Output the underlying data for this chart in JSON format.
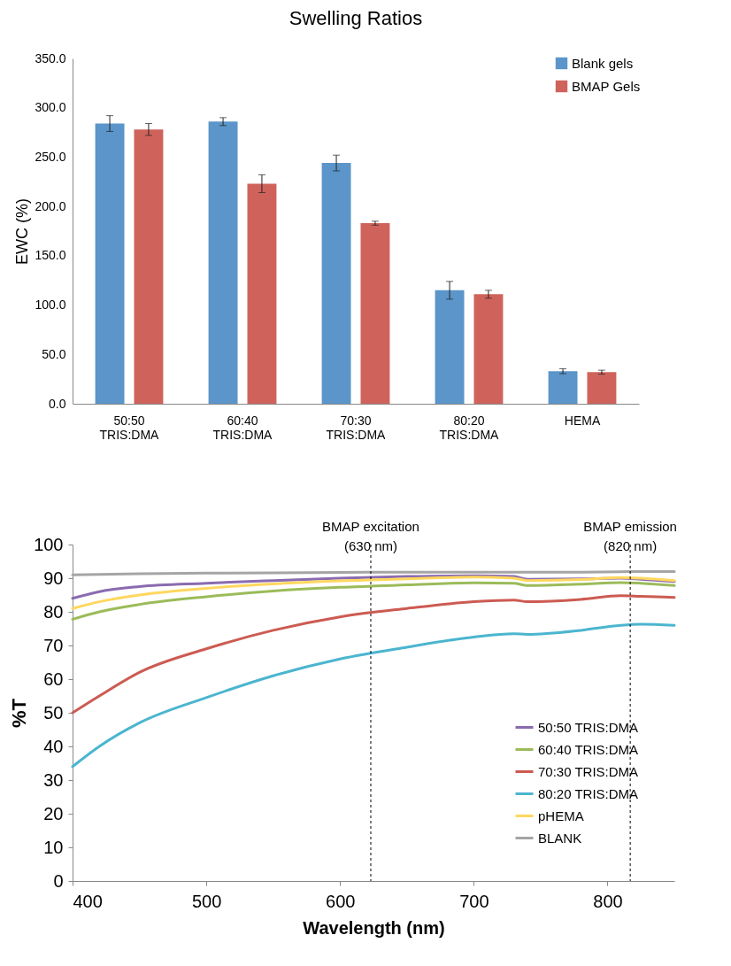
{
  "chart_data": [
    {
      "type": "bar",
      "title": "Swelling Ratios",
      "ylabel": "EWC (%)",
      "categories": [
        "50:50\nTRIS:DMA",
        "60:40\nTRIS:DMA",
        "70:30\nTRIS:DMA",
        "80:20\nTRIS:DMA",
        "HEMA"
      ],
      "series": [
        {
          "name": "Blank gels",
          "color": "#5b95c9",
          "values": [
            284,
            286,
            244,
            115,
            33
          ],
          "errors": [
            8,
            4,
            8,
            9,
            2.5
          ]
        },
        {
          "name": "BMAP Gels",
          "color": "#cf635b",
          "values": [
            278,
            223,
            183,
            111,
            32
          ],
          "errors": [
            6,
            9,
            2,
            4,
            2
          ]
        }
      ],
      "ylim": [
        0,
        350
      ],
      "yticks": [
        {
          "value": 0,
          "label": "0.0"
        },
        {
          "value": 50,
          "label": "50.0"
        },
        {
          "value": 100,
          "label": "100.0"
        },
        {
          "value": 150,
          "label": "150.0"
        },
        {
          "value": 200,
          "label": "200.0"
        },
        {
          "value": 250,
          "label": "250.0"
        },
        {
          "value": 300,
          "label": "300.0"
        },
        {
          "value": 350,
          "label": "350.0"
        }
      ],
      "grid": false,
      "legend": "top right"
    },
    {
      "type": "line",
      "xlabel": "Wavelength (nm)",
      "ylabel": "%T",
      "x": [
        400,
        420,
        450,
        500,
        550,
        600,
        650,
        700,
        730,
        740,
        780,
        810,
        825,
        850
      ],
      "series": [
        {
          "name": "50:50 TRIS:DMA",
          "color": "#8a6bb0",
          "values": [
            84,
            86,
            87.5,
            88.5,
            89.3,
            90,
            90.5,
            90.7,
            90.5,
            89.7,
            89.8,
            90,
            89.7,
            89
          ]
        },
        {
          "name": "60:40 TRIS:DMA",
          "color": "#9bbb59",
          "values": [
            77.8,
            80,
            82.2,
            84.5,
            86.2,
            87.3,
            88,
            88.6,
            88.5,
            87.8,
            88.2,
            88.7,
            88.5,
            87.8
          ]
        },
        {
          "name": "70:30 TRIS:DMA",
          "color": "#cc5b52",
          "values": [
            50,
            55,
            62,
            69,
            74.5,
            78.5,
            81,
            83,
            83.5,
            83,
            83.7,
            84.8,
            84.6,
            84.3
          ]
        },
        {
          "name": "80:20 TRIS:DMA",
          "color": "#4bb5cf",
          "values": [
            34,
            40,
            47,
            54.5,
            61,
            66,
            69.5,
            72.5,
            73.5,
            73.3,
            74.5,
            76,
            76.3,
            76
          ]
        },
        {
          "name": "pHEMA",
          "color": "#ffd75e",
          "values": [
            81,
            83,
            85,
            87,
            88.3,
            89.2,
            89.8,
            90.3,
            90,
            89.3,
            89.6,
            90.2,
            90,
            89.3
          ]
        },
        {
          "name": "BLANK",
          "color": "#a5a5a5",
          "values": [
            91,
            91.1,
            91.3,
            91.5,
            91.6,
            91.7,
            91.8,
            91.8,
            91.8,
            91.8,
            91.8,
            91.9,
            92,
            92
          ]
        }
      ],
      "xlim": [
        400,
        850
      ],
      "xticks": [
        400,
        500,
        600,
        700,
        800
      ],
      "ylim": [
        0,
        100
      ],
      "yticks": [
        0,
        10,
        20,
        30,
        40,
        50,
        60,
        70,
        80,
        90,
        100
      ],
      "ref_lines": [
        {
          "axis": "x",
          "value": 623,
          "label": "BMAP excitation\n(630 nm)",
          "color": "#000000",
          "line_style": "dashed"
        },
        {
          "axis": "x",
          "value": 817,
          "label": "BMAP emission\n(820 nm)",
          "color": "#000000",
          "line_style": "dashed"
        }
      ],
      "grid": false,
      "legend": "bottom right"
    }
  ]
}
